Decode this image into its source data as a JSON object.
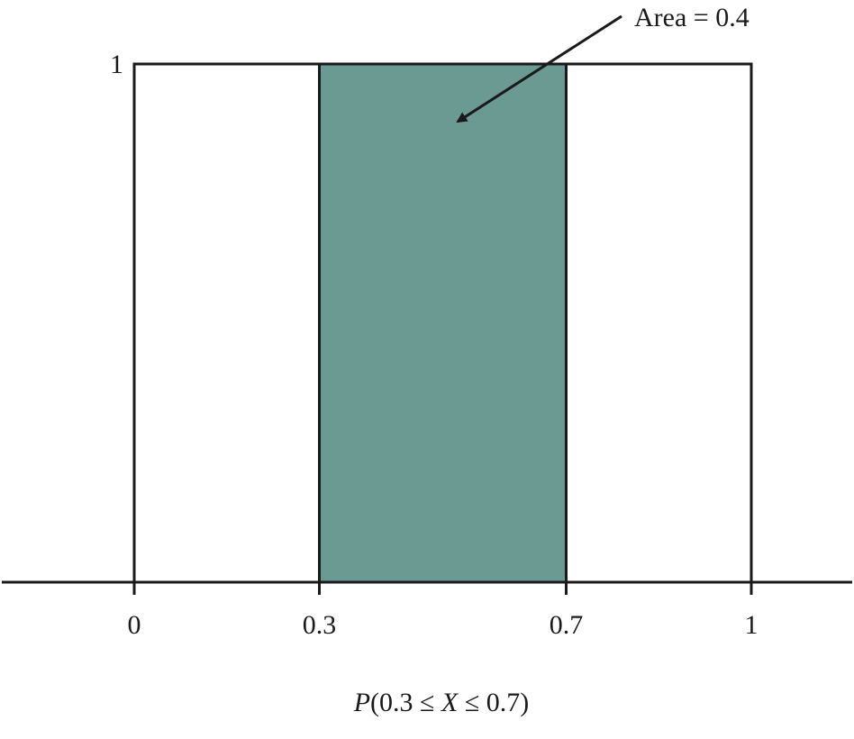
{
  "chart_data": {
    "type": "area",
    "density_value": 1,
    "support": [
      0,
      1
    ],
    "shaded_interval": [
      0.3,
      0.7
    ],
    "area_value": 0.4,
    "x_ticks": [
      "0",
      "0.3",
      "0.7",
      "1"
    ],
    "x_tick_values": [
      0,
      0.3,
      0.7,
      1
    ],
    "y_ticks": [
      "1"
    ],
    "y_tick_values": [
      1
    ],
    "annotation": "Area = 0.4",
    "caption": {
      "prefix": "P",
      "body": "(0.3 ≤ ",
      "var": "X",
      "suffix": " ≤ 0.7)"
    },
    "xlim": [
      0,
      1
    ],
    "ylim": [
      0,
      1
    ],
    "grid": false,
    "colors": {
      "shade": "#6a9a92",
      "line": "#1a1a1a"
    }
  }
}
